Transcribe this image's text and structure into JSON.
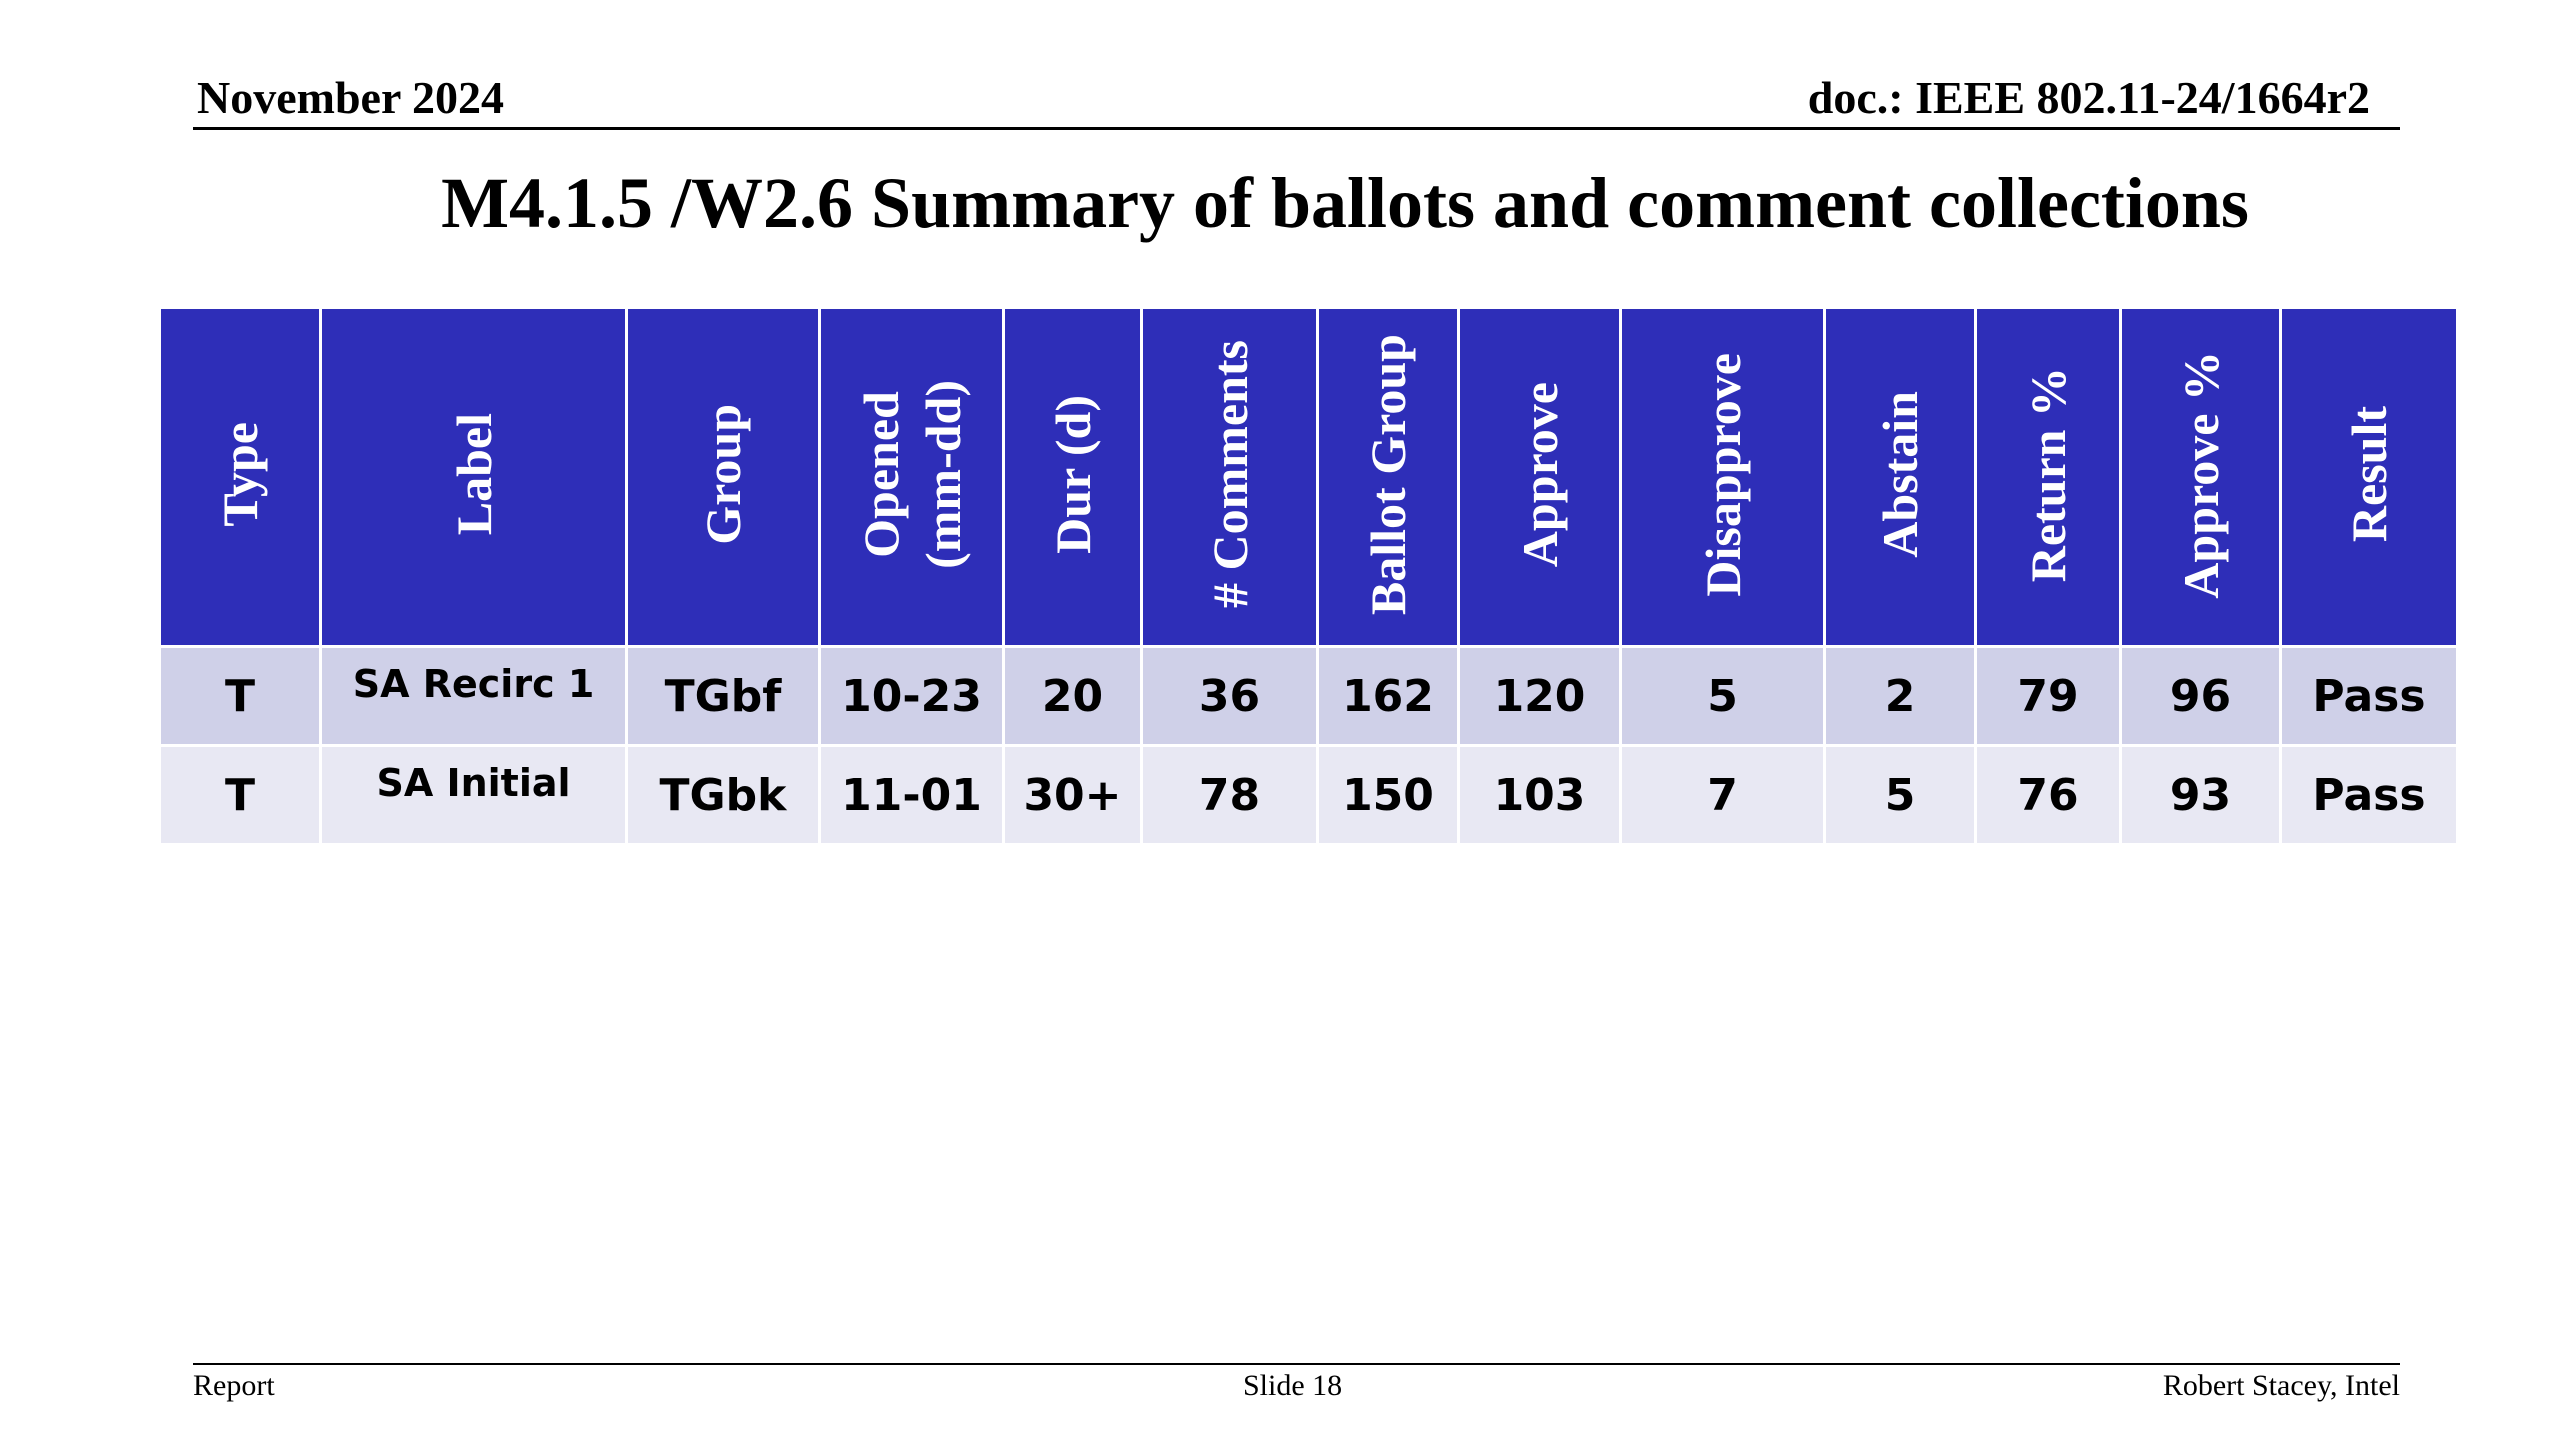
{
  "header": {
    "date": "November 2024",
    "doc": "doc.: IEEE 802.11-24/1664r2"
  },
  "title": "M4.1.5 /W2.6 Summary of ballots and comment collections",
  "table": {
    "columns": [
      "Type",
      "Label",
      "Group",
      "Opened\n(mm-dd)",
      "Dur (d)",
      "# Comments",
      "Ballot Group",
      "Approve",
      "Disapprove",
      "Abstain",
      "Return %",
      "Approve %",
      "Result"
    ],
    "rows": [
      [
        "T",
        "SA Recirc 1",
        "TGbf",
        "10-23",
        "20",
        "36",
        "162",
        "120",
        "5",
        "2",
        "79",
        "96",
        "Pass"
      ],
      [
        "T",
        "SA Initial",
        "TGbk",
        "11-01",
        "30+",
        "78",
        "150",
        "103",
        "7",
        "5",
        "76",
        "93",
        "Pass"
      ]
    ]
  },
  "footer": {
    "left": "Report",
    "center": "Slide 18",
    "right": "Robert Stacey, Intel"
  },
  "colors": {
    "header_bg": "#2e2eb8",
    "row1_bg": "#cfd0e8",
    "row2_bg": "#e8e8f3"
  }
}
